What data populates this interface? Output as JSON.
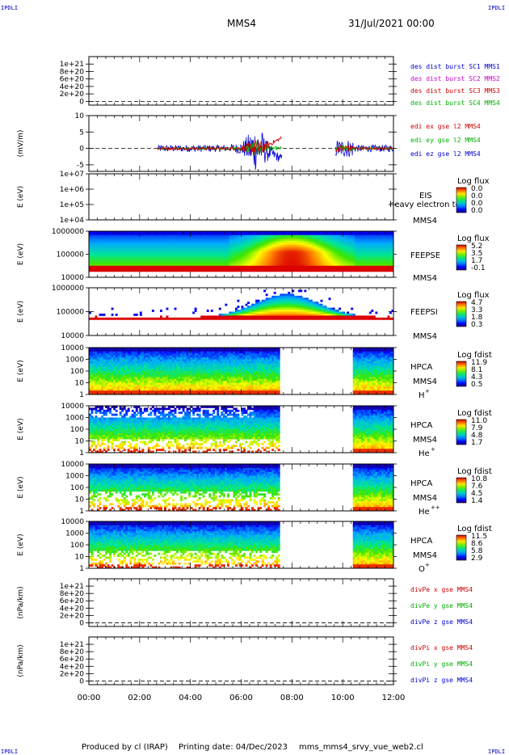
{
  "corner_label": "IPDLI",
  "header": {
    "title": "MMS4",
    "datetime": "31/Jul/2021 00:00"
  },
  "footer": {
    "produced_by": "Produced by cl (IRAP)",
    "printing_date": "Printing date: 04/Dec/2023",
    "filename": "mms_mms4_srvy_vue_web2.cl"
  },
  "colors": {
    "red": "#d00000",
    "green": "#00b000",
    "blue": "#0000d0",
    "magenta": "#d000d0"
  },
  "chart_data": {
    "type": "heatmap",
    "x_ticks": [
      "00:00",
      "02:00",
      "04:00",
      "06:00",
      "08:00",
      "10:00",
      "12:00"
    ],
    "xlim_hours": [
      0,
      12
    ],
    "panels": [
      {
        "id": "p1",
        "type": "line",
        "ylabel": "",
        "yticks": [
          "1e+21",
          "8e+20",
          "6e+20",
          "4e+20",
          "2e+20",
          "0"
        ],
        "ylim": [
          -1e+20,
          1.2e+21
        ],
        "legend": [
          {
            "text": "des dist burst SC1 MMS1",
            "color": "blue"
          },
          {
            "text": "des dist burst SC2 MMS2",
            "color": "magenta"
          },
          {
            "text": "des dist burst SC3 MMS3",
            "color": "red"
          },
          {
            "text": "des dist burst SC4 MMS4",
            "color": "green"
          }
        ]
      },
      {
        "id": "p2",
        "type": "line",
        "ylabel": "(mV/m)",
        "yticks": [
          "10",
          "5",
          "0",
          "-5"
        ],
        "ylim": [
          -7,
          10
        ],
        "legend": [
          {
            "text": "edi ex gse l2 MMS4",
            "color": "red"
          },
          {
            "text": "edi ey gse l2 MMS4",
            "color": "green"
          },
          {
            "text": "edi ez gse l2 MMS4",
            "color": "blue"
          }
        ],
        "data_gaps_hours": [
          [
            7.6,
            9.7
          ]
        ]
      },
      {
        "id": "p3",
        "type": "heatmap",
        "ylabel": "E (eV)",
        "yticks": [
          "1e+07",
          "1e+06",
          "1e+05",
          "1e+04"
        ],
        "labels": [
          "EIS",
          "MMS4"
        ],
        "overlay_text": "heavy electron to",
        "cbar_title": "Log flux",
        "cbar_ticks": [
          "0.0",
          "0.0",
          "0.0",
          "0.0"
        ]
      },
      {
        "id": "p4",
        "type": "heatmap",
        "ylabel": "E (eV)",
        "yticks": [
          "1000000",
          "100000",
          "10000"
        ],
        "labels": [
          "FEEPSE",
          "MMS4"
        ],
        "cbar_title": "Log flux",
        "cbar_ticks": [
          "5.2",
          "3.5",
          "1.7",
          "-0.1"
        ]
      },
      {
        "id": "p5",
        "type": "heatmap",
        "ylabel": "E (eV)",
        "yticks": [
          "1000000",
          "100000",
          "10000"
        ],
        "labels": [
          "FEEPSI",
          "MMS4"
        ],
        "cbar_title": "Log flux",
        "cbar_ticks": [
          "4.7",
          "3.3",
          "1.8",
          "0.3"
        ]
      },
      {
        "id": "p6",
        "type": "heatmap",
        "ylabel": "E (eV)",
        "yticks": [
          "10000",
          "1000",
          "100",
          "10",
          "1"
        ],
        "labels": [
          "HPCA",
          "MMS4"
        ],
        "species": "H",
        "species_sup": "+",
        "cbar_title": "Log fdist",
        "cbar_ticks": [
          "11.9",
          "8.1",
          "4.3",
          "0.5"
        ],
        "data_gaps_hours": [
          [
            7.5,
            10.4
          ]
        ]
      },
      {
        "id": "p7",
        "type": "heatmap",
        "ylabel": "E (eV)",
        "yticks": [
          "10000",
          "1000",
          "100",
          "10",
          "1"
        ],
        "labels": [
          "HPCA",
          "MMS4"
        ],
        "species": "He",
        "species_sup": "+",
        "cbar_title": "Log fdist",
        "cbar_ticks": [
          "11.0",
          "7.9",
          "4.8",
          "1.7"
        ],
        "data_gaps_hours": [
          [
            7.5,
            10.4
          ]
        ]
      },
      {
        "id": "p8",
        "type": "heatmap",
        "ylabel": "E (eV)",
        "yticks": [
          "10000",
          "1000",
          "100",
          "10",
          "1"
        ],
        "labels": [
          "HPCA",
          "MMS4"
        ],
        "species": "He",
        "species_sup": "++",
        "cbar_title": "Log fdist",
        "cbar_ticks": [
          "10.8",
          "7.6",
          "4.5",
          "1.4"
        ],
        "data_gaps_hours": [
          [
            7.5,
            10.4
          ]
        ]
      },
      {
        "id": "p9",
        "type": "heatmap",
        "ylabel": "E (eV)",
        "yticks": [
          "10000",
          "1000",
          "100",
          "10",
          "1"
        ],
        "labels": [
          "HPCA",
          "MMS4"
        ],
        "species": "O",
        "species_sup": "+",
        "cbar_title": "Log fdist",
        "cbar_ticks": [
          "11.5",
          "8.6",
          "5.8",
          "2.9"
        ],
        "data_gaps_hours": [
          [
            7.5,
            10.4
          ]
        ]
      },
      {
        "id": "p10",
        "type": "line",
        "ylabel": "(nPa/km)",
        "yticks": [
          "1e+21",
          "8e+20",
          "6e+20",
          "4e+20",
          "2e+20",
          "0"
        ],
        "ylim": [
          -1e+20,
          1.2e+21
        ],
        "legend": [
          {
            "text": "divPe x gse MMS4",
            "color": "red"
          },
          {
            "text": "divPe y gse MMS4",
            "color": "green"
          },
          {
            "text": "divPe z gse MMS4",
            "color": "blue"
          }
        ]
      },
      {
        "id": "p11",
        "type": "line",
        "ylabel": "(nPa/km)",
        "yticks": [
          "1e+21",
          "8e+20",
          "6e+20",
          "4e+20",
          "2e+20",
          "0"
        ],
        "ylim": [
          -1e+20,
          1.2e+21
        ],
        "legend": [
          {
            "text": "divPi x gse MMS4",
            "color": "red"
          },
          {
            "text": "divPi y gse MMS4",
            "color": "green"
          },
          {
            "text": "divPi z gse MMS4",
            "color": "blue"
          }
        ]
      }
    ]
  }
}
